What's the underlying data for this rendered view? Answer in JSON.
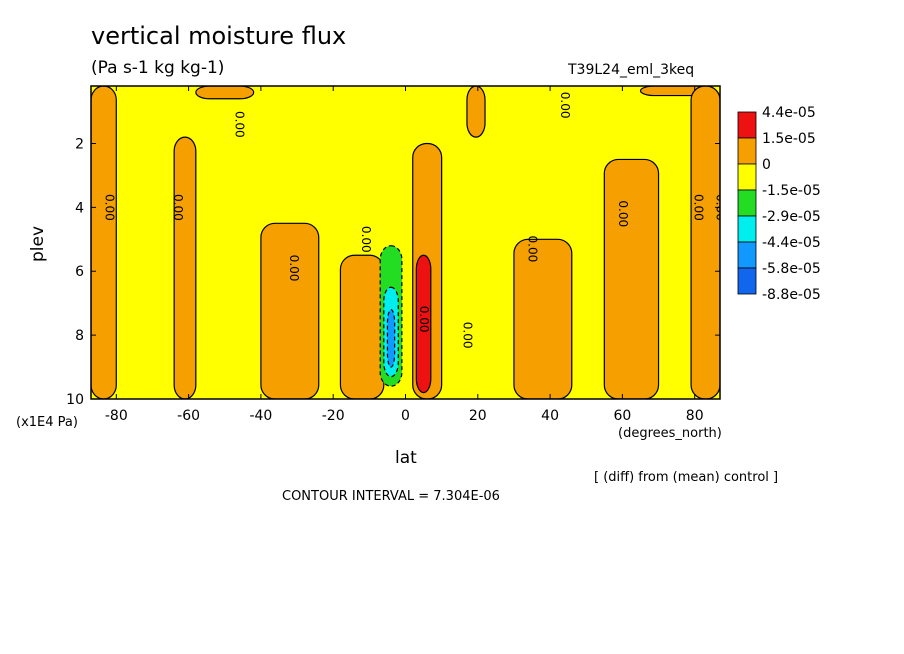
{
  "chart_data": {
    "type": "heatmap",
    "title": "vertical moisture flux",
    "units": "(Pa s-1 kg kg-1)",
    "experiment": "T39L24_eml_3keq",
    "xlabel": "lat",
    "xunits": "(degrees_north)",
    "ylabel": "plev",
    "yunits": "(x1E4 Pa)",
    "xlim": [
      -87,
      87
    ],
    "ylim": [
      10,
      0.2
    ],
    "x_ticks": [
      "-80",
      "-60",
      "-40",
      "-20",
      "0",
      "20",
      "40",
      "60",
      "80"
    ],
    "x_tick_values": [
      -80,
      -60,
      -40,
      -20,
      0,
      20,
      40,
      60,
      80
    ],
    "y_ticks": [
      "2",
      "4",
      "6",
      "8",
      "10"
    ],
    "y_tick_values": [
      2,
      4,
      6,
      8,
      10
    ],
    "contour_label": "0.00",
    "contour_interval": "CONTOUR INTERVAL = 7.304E-06",
    "note": "[ (diff) from (mean) control ]",
    "colorbar": [
      {
        "label": "4.4e-05",
        "color": "#ee1111"
      },
      {
        "label": "1.5e-05",
        "color": "#f5a000"
      },
      {
        "label": "0",
        "color": "#ffff00"
      },
      {
        "label": "-1.5e-05",
        "color": "#22dd22"
      },
      {
        "label": "-2.9e-05",
        "color": "#00eeee"
      },
      {
        "label": "-4.4e-05",
        "color": "#1199ff"
      },
      {
        "label": "-5.8e-05",
        "color": "#1166ee"
      },
      {
        "label": "-8.8e-05",
        "color": null
      }
    ],
    "positive_regions": [
      {
        "lat_min": -87,
        "lat_max": -80,
        "plev_min": 0.2,
        "plev_max": 10
      },
      {
        "lat_min": -64,
        "lat_max": -58,
        "plev_min": 1.8,
        "plev_max": 10
      },
      {
        "lat_min": -58,
        "lat_max": -42,
        "plev_min": 0.2,
        "plev_max": 0.6
      },
      {
        "lat_min": -40,
        "lat_max": -24,
        "plev_min": 4.5,
        "plev_max": 10
      },
      {
        "lat_min": -18,
        "lat_max": -6,
        "plev_min": 5.5,
        "plev_max": 10
      },
      {
        "lat_min": 2,
        "lat_max": 10,
        "plev_min": 2.0,
        "plev_max": 10
      },
      {
        "lat_min": 17,
        "lat_max": 22,
        "plev_min": 0.2,
        "plev_max": 1.8
      },
      {
        "lat_min": 30,
        "lat_max": 46,
        "plev_min": 5.0,
        "plev_max": 10
      },
      {
        "lat_min": 55,
        "lat_max": 70,
        "plev_min": 2.5,
        "plev_max": 10
      },
      {
        "lat_min": 65,
        "lat_max": 85,
        "plev_min": 0.2,
        "plev_max": 0.5
      },
      {
        "lat_min": 79,
        "lat_max": 87,
        "plev_min": 0.2,
        "plev_max": 10
      }
    ],
    "negative_regions": [
      {
        "lat_min": -7,
        "lat_max": -1,
        "plev_min": 5.2,
        "plev_max": 9.6,
        "level": "-1.5e-05"
      },
      {
        "lat_min": -6,
        "lat_max": -2,
        "plev_min": 6.5,
        "plev_max": 9.3,
        "level": "-2.9e-05"
      },
      {
        "lat_min": -5,
        "lat_max": -3,
        "plev_min": 7.2,
        "plev_max": 9.0,
        "level": "-4.4e-05"
      }
    ],
    "max_region": {
      "lat_min": 3,
      "lat_max": 7,
      "plev_min": 5.5,
      "plev_max": 9.8,
      "level": "4.4e-05"
    }
  }
}
